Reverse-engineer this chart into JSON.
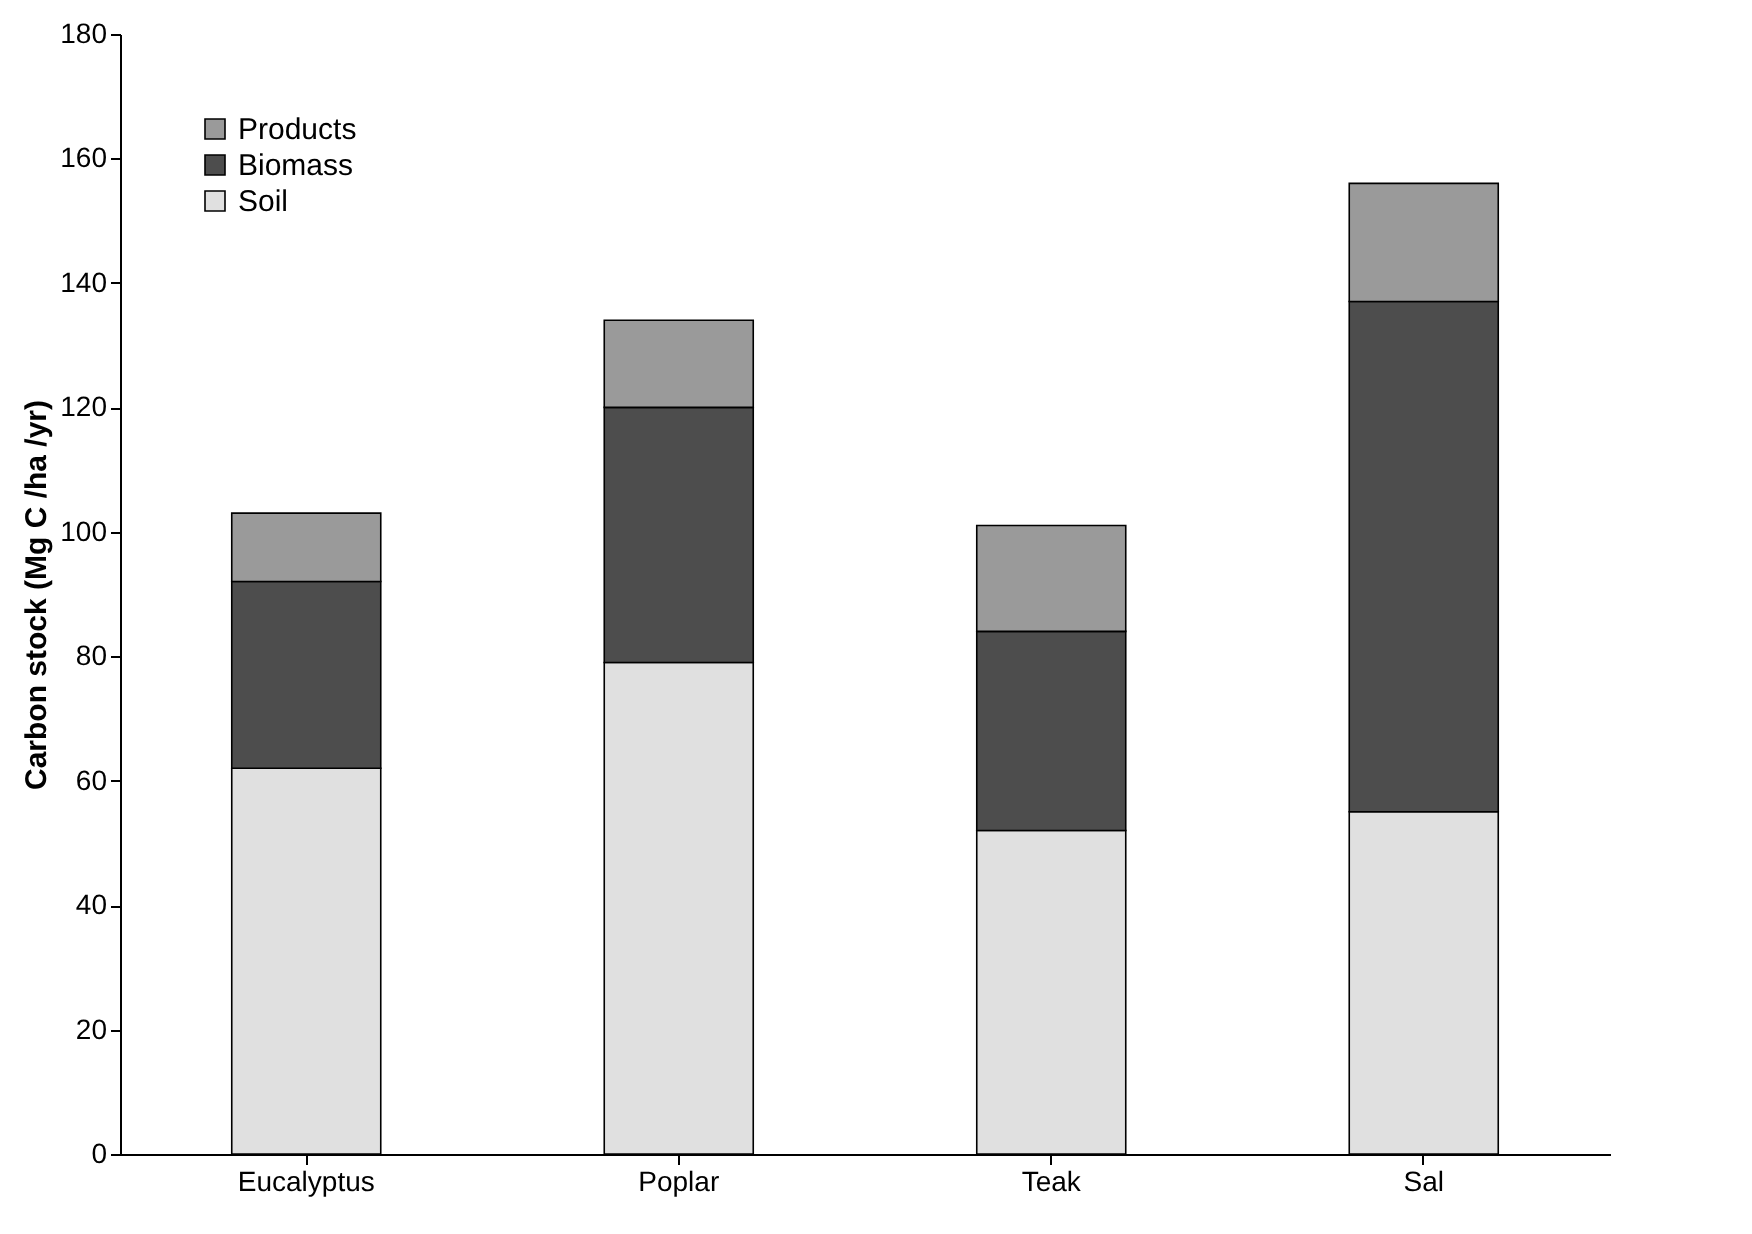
{
  "chart_data": {
    "type": "bar",
    "stacked": true,
    "ylabel": "Carbon stock (Mg C /ha /yr)",
    "categories": [
      "Eucalyptus",
      "Poplar",
      "Teak",
      "Sal"
    ],
    "series": [
      {
        "name": "Soil",
        "color": "#e0e0e0",
        "values": [
          62,
          79,
          52,
          55
        ]
      },
      {
        "name": "Biomass",
        "color": "#4d4d4d",
        "values": [
          30,
          41,
          32,
          82
        ]
      },
      {
        "name": "Products",
        "color": "#9a9a9a",
        "values": [
          11,
          14,
          17,
          19
        ]
      }
    ],
    "ylim": [
      0,
      180
    ],
    "yticks": [
      0,
      20,
      40,
      60,
      80,
      100,
      120,
      140,
      160,
      180
    ],
    "grid": false,
    "legend": "top left"
  }
}
